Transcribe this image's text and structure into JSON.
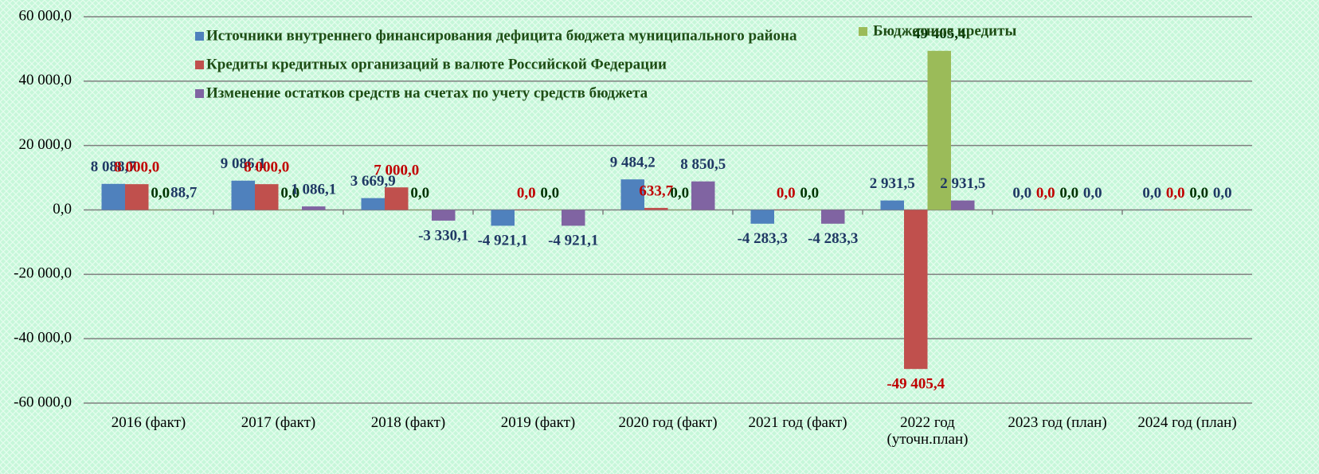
{
  "chart_data": {
    "type": "bar",
    "categories": [
      "2016 (факт)",
      "2017 (факт)",
      "2018 (факт)",
      "2019 (факт)",
      "2020 год (факт)",
      "2021 год (факт)",
      "2022 год (уточн.план)",
      "2023 год (план)",
      "2024 год (план)"
    ],
    "series": [
      {
        "name": "Источники внутреннего финансирования дефицита бюджета муниципального района",
        "color": "#4f81bd",
        "label_color": "#1f3864",
        "values": [
          8088.7,
          9086.1,
          3669.9,
          -4921.1,
          9484.2,
          -4283.3,
          2931.5,
          0,
          0
        ],
        "value_labels": [
          "8 088,7",
          "9 086,1",
          "3 669,9",
          "-4 921,1",
          "9 484,2",
          "-4 283,3",
          "2 931,5",
          "0,0",
          "0,0"
        ]
      },
      {
        "name": "Кредиты кредитных организаций в валюте  Российской Федерации",
        "color": "#c0504d",
        "label_color": "#c00000",
        "values": [
          8000,
          8000,
          7000,
          0,
          633.7,
          0,
          -49405.4,
          0,
          0
        ],
        "value_labels": [
          "8 000,0",
          "8 000,0",
          "7 000,0",
          "0,0",
          "633,7",
          "0,0",
          "-49 405,4",
          "0,0",
          "0,0"
        ]
      },
      {
        "name": "Бюджетные кредиты",
        "color": "#9bbb59",
        "label_color": "#003300",
        "values": [
          0,
          0,
          0,
          0,
          0,
          0,
          49405.4,
          0,
          0
        ],
        "value_labels": [
          "0,0",
          "0,0",
          "0,0",
          "0,0",
          "0,0",
          "0,0",
          "49 405,4",
          "0,0",
          "0,0"
        ]
      },
      {
        "name": "Изменение остатков средств на счетах по учету средств бюджета",
        "color": "#8064a2",
        "label_color": "#1f3864",
        "values": [
          88.7,
          1086.1,
          -3330.1,
          -4921.1,
          8850.5,
          -4283.3,
          2931.5,
          0,
          0
        ],
        "value_labels": [
          "88,7",
          "1 086,1",
          "-3 330,1",
          "-4 921,1",
          "8 850,5",
          "-4 283,3",
          "2 931,5",
          "0,0",
          "0,0"
        ]
      }
    ],
    "ylim": [
      -60000,
      60000
    ],
    "yticks": [
      {
        "value": -60000,
        "label": "-60 000,0"
      },
      {
        "value": -40000,
        "label": "-40 000,0"
      },
      {
        "value": -20000,
        "label": "-20 000,0"
      },
      {
        "value": 0,
        "label": "0,0"
      },
      {
        "value": 20000,
        "label": "20 000,0"
      },
      {
        "value": 40000,
        "label": "40 000,0"
      },
      {
        "value": 60000,
        "label": "60 000,0"
      }
    ],
    "grid": true
  }
}
